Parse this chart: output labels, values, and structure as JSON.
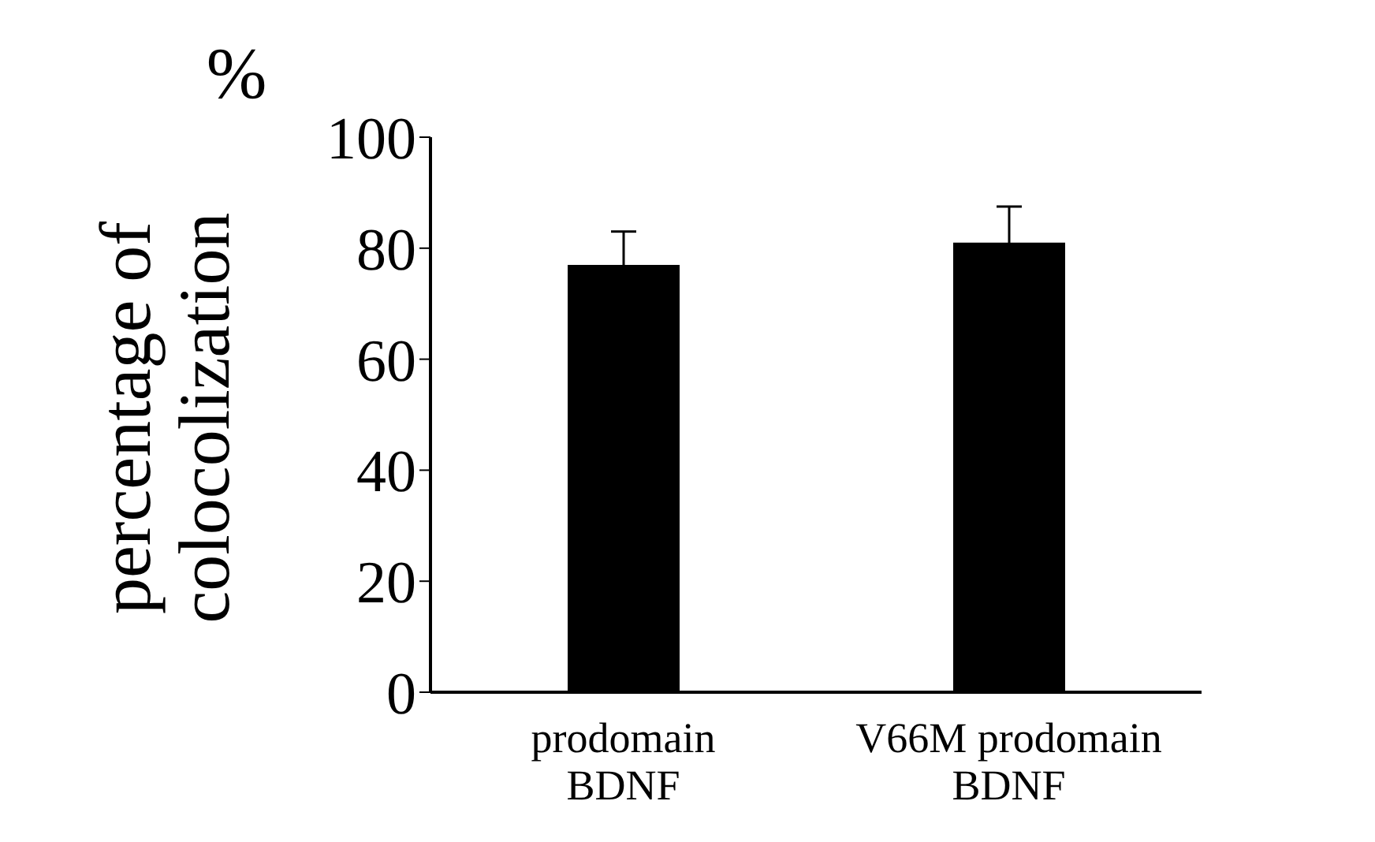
{
  "chart_data": {
    "type": "bar",
    "ylabel": "percentage of colocolization",
    "annotations": [
      "%"
    ],
    "categories": [
      "prodomain BDNF",
      "V66M prodomain BDNF"
    ],
    "values": [
      77,
      81
    ],
    "errors": [
      6,
      6.5
    ],
    "color": "#000000",
    "ylim": [
      0,
      100
    ],
    "yticks": [
      0,
      20,
      40,
      60,
      80,
      100
    ],
    "grid": false,
    "legend": false
  }
}
